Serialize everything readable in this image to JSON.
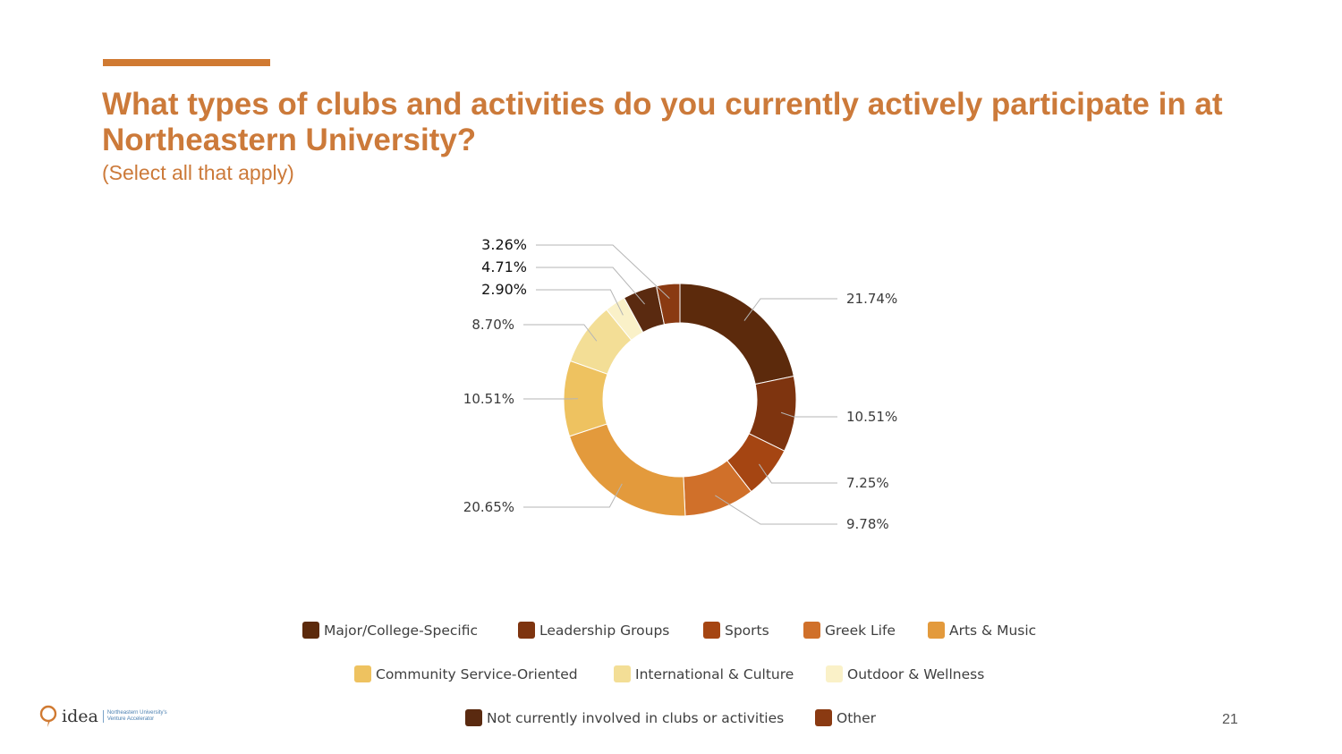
{
  "slide": {
    "title": "What types of clubs and activities do you currently actively participate in at Northeastern University?",
    "subtitle": "(Select all that apply)",
    "page_number": "21",
    "logo": {
      "word": "idea",
      "tagline_1": "Northeastern University's",
      "tagline_2": "Venture Accelerator"
    },
    "accent_color": "#D07A32"
  },
  "chart_data": {
    "type": "pie",
    "donut": true,
    "title": "",
    "legend_position": "bottom",
    "slices": [
      {
        "label": "Major/College-Specific",
        "value": 21.74,
        "display": "21.74%",
        "color": "#5C2A0C"
      },
      {
        "label": "Leadership Groups",
        "value": 10.51,
        "display": "10.51%",
        "color": "#7E340F"
      },
      {
        "label": "Sports",
        "value": 7.25,
        "display": "7.25%",
        "color": "#A54512"
      },
      {
        "label": "Greek Life",
        "value": 9.78,
        "display": "9.78%",
        "color": "#D0702A"
      },
      {
        "label": "Arts & Music",
        "value": 20.65,
        "display": "20.65%",
        "color": "#E39A3C"
      },
      {
        "label": "Community Service-Oriented",
        "value": 10.51,
        "display": "10.51%",
        "color": "#EEC260"
      },
      {
        "label": "International & Culture",
        "value": 8.7,
        "display": "8.70%",
        "color": "#F3DE96"
      },
      {
        "label": "Outdoor & Wellness",
        "value": 2.9,
        "display": "2.90%",
        "color": "#FAF1C8"
      },
      {
        "label": "Not currently involved in clubs or activities",
        "value": 4.71,
        "display": "4.71%",
        "color": "#5A2A10"
      },
      {
        "label": "Other",
        "value": 3.26,
        "display": "3.26%",
        "color": "#8A3A12"
      }
    ]
  }
}
